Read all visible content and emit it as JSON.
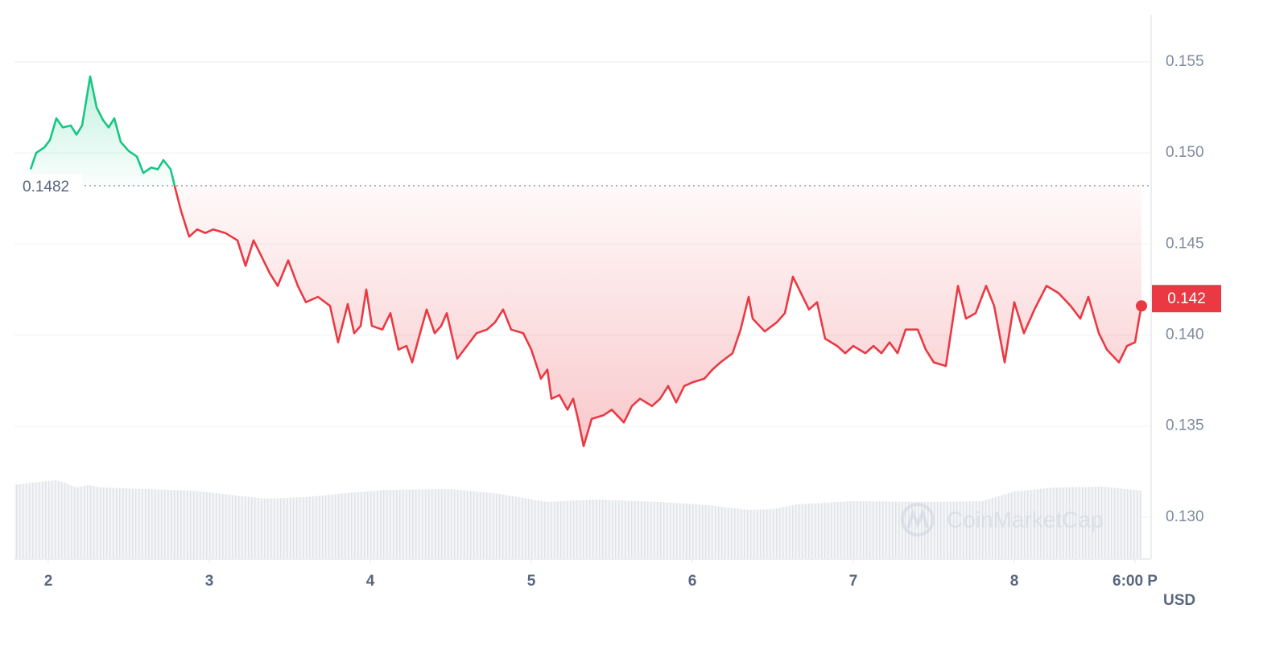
{
  "chart_data": {
    "type": "line",
    "x": [
      1.89,
      1.925,
      1.975,
      2.01,
      2.05,
      2.09,
      2.14,
      2.175,
      2.21,
      2.26,
      2.3,
      2.34,
      2.375,
      2.41,
      2.45,
      2.5,
      2.55,
      2.59,
      2.64,
      2.68,
      2.715,
      2.76,
      2.79,
      2.825,
      2.875,
      2.925,
      2.975,
      3.025,
      3.1,
      3.175,
      3.225,
      3.275,
      3.325,
      3.375,
      3.425,
      3.49,
      3.55,
      3.6,
      3.675,
      3.75,
      3.8,
      3.86,
      3.9,
      3.94,
      3.975,
      4.01,
      4.075,
      4.125,
      4.175,
      4.225,
      4.26,
      4.3,
      4.35,
      4.4,
      4.44,
      4.475,
      4.54,
      4.6,
      4.66,
      4.725,
      4.775,
      4.825,
      4.875,
      4.95,
      5.0,
      5.06,
      5.1,
      5.125,
      5.175,
      5.225,
      5.26,
      5.29,
      5.325,
      5.375,
      5.45,
      5.5,
      5.575,
      5.625,
      5.675,
      5.75,
      5.8,
      5.85,
      5.9,
      5.95,
      6.0,
      6.075,
      6.125,
      6.175,
      6.25,
      6.3,
      6.35,
      6.375,
      6.45,
      6.525,
      6.575,
      6.625,
      6.675,
      6.725,
      6.775,
      6.825,
      6.9,
      6.95,
      7.0,
      7.075,
      7.125,
      7.175,
      7.225,
      7.275,
      7.325,
      7.4,
      7.45,
      7.5,
      7.575,
      7.65,
      7.7,
      7.76,
      7.825,
      7.875,
      7.94,
      8.0,
      8.06,
      8.125,
      8.2,
      8.275,
      8.35,
      8.41,
      8.46,
      8.525,
      8.575,
      8.65,
      8.7,
      8.75,
      8.775,
      8.79
    ],
    "values": [
      0.1491,
      0.15,
      0.1503,
      0.1507,
      0.1519,
      0.1514,
      0.1515,
      0.151,
      0.1515,
      0.1542,
      0.1525,
      0.1518,
      0.1514,
      0.1519,
      0.1506,
      0.1501,
      0.1498,
      0.1489,
      0.1492,
      0.1491,
      0.1496,
      0.1491,
      0.148,
      0.1468,
      0.1454,
      0.1458,
      0.1456,
      0.1458,
      0.1456,
      0.1452,
      0.1438,
      0.1452,
      0.1443,
      0.1434,
      0.1427,
      0.1441,
      0.1427,
      0.1418,
      0.1421,
      0.1416,
      0.1396,
      0.1417,
      0.1401,
      0.1405,
      0.1425,
      0.1405,
      0.1403,
      0.1412,
      0.1392,
      0.1394,
      0.1385,
      0.1398,
      0.1414,
      0.1401,
      0.1405,
      0.1412,
      0.1387,
      0.1394,
      0.1401,
      0.1403,
      0.1407,
      0.1414,
      0.1403,
      0.1401,
      0.1392,
      0.1376,
      0.1381,
      0.1365,
      0.1367,
      0.1359,
      0.1365,
      0.1354,
      0.1339,
      0.1354,
      0.1356,
      0.1359,
      0.1352,
      0.1361,
      0.1365,
      0.1361,
      0.1365,
      0.1372,
      0.1363,
      0.1372,
      0.1374,
      0.1376,
      0.1381,
      0.1385,
      0.139,
      0.1403,
      0.1421,
      0.1409,
      0.1402,
      0.1407,
      0.1412,
      0.1432,
      0.1423,
      0.1414,
      0.1418,
      0.1398,
      0.1394,
      0.139,
      0.1394,
      0.139,
      0.1394,
      0.139,
      0.1396,
      0.139,
      0.1403,
      0.1403,
      0.1392,
      0.1385,
      0.1383,
      0.1427,
      0.1409,
      0.1412,
      0.1427,
      0.1416,
      0.1385,
      0.1418,
      0.1401,
      0.1414,
      0.1427,
      0.1423,
      0.1416,
      0.1409,
      0.1421,
      0.1401,
      0.1392,
      0.1385,
      0.1394,
      0.1396,
      0.1409,
      0.1416
    ],
    "reference_price": 0.1482,
    "last_price": 0.142,
    "up_color": "#16c784",
    "down_color": "#ea3943",
    "xlim": [
      1.79,
      8.85
    ],
    "xticks": [
      2,
      3,
      4,
      5,
      6,
      7,
      8,
      {
        "value": 8.75,
        "label": "6:00 P"
      }
    ],
    "ylim": [
      0.1277,
      0.1576
    ],
    "yticks": [
      {
        "value": 0.13,
        "label": "0.130"
      },
      0.135,
      {
        "value": 0.14,
        "label": "0.140"
      },
      0.145,
      {
        "value": 0.15,
        "label": "0.150"
      },
      0.155
    ],
    "y_axis_label": "USD",
    "watermark": "CoinMarketCap",
    "grid": true
  }
}
